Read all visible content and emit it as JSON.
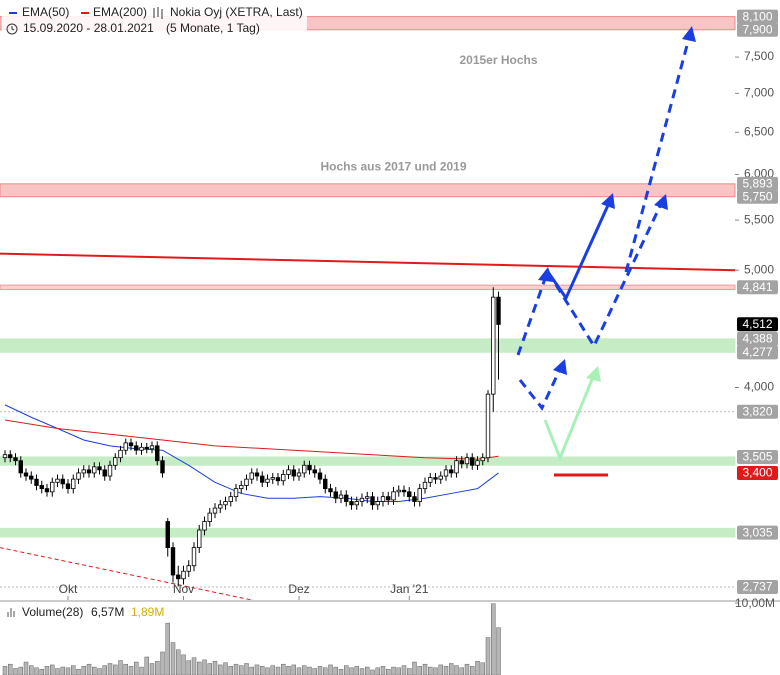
{
  "chart_data": {
    "type": "candlestick",
    "title": "Nokia Oyj (XETRA, Last)",
    "subtitle": "15.09.2020 - 28.01.2021",
    "period": "(5 Monate, 1 Tag)",
    "log_scale": true,
    "ylim": [
      2.67,
      8.36
    ],
    "yticks": [
      {
        "value": 4.0,
        "label": "4,000"
      },
      {
        "value": 5.0,
        "label": "5,000"
      },
      {
        "value": 5.5,
        "label": "5,500"
      },
      {
        "value": 6.0,
        "label": "6,000"
      },
      {
        "value": 6.5,
        "label": "6,500"
      },
      {
        "value": 7.0,
        "label": "7,000"
      },
      {
        "value": 7.5,
        "label": "7,500"
      }
    ],
    "categories": [
      null,
      null,
      null,
      null,
      null,
      null,
      null,
      null,
      null,
      null,
      null,
      null,
      "Okt",
      null,
      null,
      null,
      null,
      null,
      null,
      null,
      null,
      null,
      null,
      null,
      null,
      null,
      null,
      null,
      null,
      null,
      null,
      null,
      null,
      null,
      "Nov",
      null,
      null,
      null,
      null,
      null,
      null,
      null,
      null,
      null,
      null,
      null,
      null,
      null,
      null,
      null,
      null,
      null,
      null,
      null,
      null,
      null,
      "Dez",
      null,
      null,
      null,
      null,
      null,
      null,
      null,
      null,
      null,
      null,
      null,
      null,
      null,
      null,
      null,
      null,
      null,
      null,
      null,
      null,
      "Jan '21",
      null,
      null,
      null,
      null,
      null,
      null,
      null,
      null,
      null,
      null,
      null,
      null,
      null,
      null,
      null,
      null,
      null
    ],
    "candles": [
      [
        3.5,
        3.55,
        3.47,
        3.52
      ],
      [
        3.52,
        3.55,
        3.47,
        3.5
      ],
      [
        3.5,
        3.53,
        3.45,
        3.48
      ],
      [
        3.48,
        3.51,
        3.37,
        3.4
      ],
      [
        3.4,
        3.43,
        3.35,
        3.38
      ],
      [
        3.38,
        3.41,
        3.33,
        3.36
      ],
      [
        3.36,
        3.39,
        3.29,
        3.32
      ],
      [
        3.32,
        3.35,
        3.27,
        3.3
      ],
      [
        3.3,
        3.33,
        3.25,
        3.28
      ],
      [
        3.28,
        3.37,
        3.25,
        3.34
      ],
      [
        3.34,
        3.39,
        3.31,
        3.36
      ],
      [
        3.36,
        3.39,
        3.3,
        3.33
      ],
      [
        3.33,
        3.36,
        3.27,
        3.3
      ],
      [
        3.3,
        3.39,
        3.27,
        3.36
      ],
      [
        3.36,
        3.43,
        3.33,
        3.4
      ],
      [
        3.4,
        3.45,
        3.37,
        3.42
      ],
      [
        3.42,
        3.45,
        3.37,
        3.4
      ],
      [
        3.4,
        3.47,
        3.37,
        3.44
      ],
      [
        3.44,
        3.47,
        3.39,
        3.42
      ],
      [
        3.42,
        3.45,
        3.35,
        3.38
      ],
      [
        3.38,
        3.48,
        3.35,
        3.45
      ],
      [
        3.45,
        3.53,
        3.42,
        3.5
      ],
      [
        3.5,
        3.58,
        3.47,
        3.55
      ],
      [
        3.55,
        3.63,
        3.52,
        3.6
      ],
      [
        3.6,
        3.63,
        3.55,
        3.58
      ],
      [
        3.58,
        3.61,
        3.52,
        3.55
      ],
      [
        3.55,
        3.6,
        3.52,
        3.57
      ],
      [
        3.57,
        3.6,
        3.53,
        3.56
      ],
      [
        3.56,
        3.61,
        3.53,
        3.58
      ],
      [
        3.58,
        3.61,
        3.45,
        3.48
      ],
      [
        3.48,
        3.51,
        3.37,
        3.4
      ],
      [
        3.1,
        3.12,
        2.9,
        2.95
      ],
      [
        2.95,
        2.98,
        2.76,
        2.8
      ],
      [
        2.8,
        2.85,
        2.74,
        2.78
      ],
      [
        2.78,
        2.85,
        2.75,
        2.82
      ],
      [
        2.82,
        2.88,
        2.79,
        2.85
      ],
      [
        2.85,
        2.98,
        2.82,
        2.95
      ],
      [
        2.95,
        3.08,
        2.92,
        3.05
      ],
      [
        3.05,
        3.13,
        3.02,
        3.1
      ],
      [
        3.1,
        3.18,
        3.07,
        3.15
      ],
      [
        3.15,
        3.21,
        3.12,
        3.18
      ],
      [
        3.18,
        3.23,
        3.15,
        3.2
      ],
      [
        3.2,
        3.25,
        3.17,
        3.22
      ],
      [
        3.22,
        3.28,
        3.19,
        3.25
      ],
      [
        3.25,
        3.33,
        3.22,
        3.3
      ],
      [
        3.3,
        3.35,
        3.27,
        3.32
      ],
      [
        3.32,
        3.39,
        3.29,
        3.36
      ],
      [
        3.36,
        3.43,
        3.33,
        3.4
      ],
      [
        3.4,
        3.43,
        3.35,
        3.38
      ],
      [
        3.38,
        3.41,
        3.31,
        3.34
      ],
      [
        3.34,
        3.39,
        3.31,
        3.36
      ],
      [
        3.36,
        3.4,
        3.33,
        3.37
      ],
      [
        3.37,
        3.4,
        3.32,
        3.35
      ],
      [
        3.35,
        3.42,
        3.32,
        3.39
      ],
      [
        3.39,
        3.45,
        3.36,
        3.42
      ],
      [
        3.42,
        3.45,
        3.35,
        3.38
      ],
      [
        3.38,
        3.43,
        3.35,
        3.4
      ],
      [
        3.4,
        3.48,
        3.37,
        3.45
      ],
      [
        3.45,
        3.48,
        3.39,
        3.42
      ],
      [
        3.42,
        3.45,
        3.37,
        3.4
      ],
      [
        3.4,
        3.43,
        3.33,
        3.36
      ],
      [
        3.36,
        3.39,
        3.27,
        3.3
      ],
      [
        3.3,
        3.33,
        3.25,
        3.28
      ],
      [
        3.28,
        3.31,
        3.21,
        3.24
      ],
      [
        3.24,
        3.29,
        3.21,
        3.26
      ],
      [
        3.26,
        3.29,
        3.19,
        3.22
      ],
      [
        3.22,
        3.25,
        3.17,
        3.2
      ],
      [
        3.2,
        3.25,
        3.17,
        3.22
      ],
      [
        3.22,
        3.27,
        3.19,
        3.24
      ],
      [
        3.24,
        3.28,
        3.21,
        3.25
      ],
      [
        3.25,
        3.28,
        3.17,
        3.2
      ],
      [
        3.2,
        3.25,
        3.17,
        3.22
      ],
      [
        3.22,
        3.28,
        3.19,
        3.25
      ],
      [
        3.25,
        3.28,
        3.2,
        3.23
      ],
      [
        3.23,
        3.31,
        3.2,
        3.28
      ],
      [
        3.28,
        3.32,
        3.25,
        3.29
      ],
      [
        3.29,
        3.32,
        3.25,
        3.28
      ],
      [
        3.28,
        3.31,
        3.22,
        3.25
      ],
      [
        3.25,
        3.28,
        3.19,
        3.22
      ],
      [
        3.22,
        3.33,
        3.19,
        3.3
      ],
      [
        3.3,
        3.37,
        3.27,
        3.34
      ],
      [
        3.34,
        3.4,
        3.31,
        3.37
      ],
      [
        3.37,
        3.4,
        3.33,
        3.36
      ],
      [
        3.36,
        3.41,
        3.33,
        3.38
      ],
      [
        3.38,
        3.45,
        3.35,
        3.42
      ],
      [
        3.42,
        3.45,
        3.37,
        3.4
      ],
      [
        3.4,
        3.51,
        3.37,
        3.48
      ],
      [
        3.48,
        3.51,
        3.43,
        3.46
      ],
      [
        3.46,
        3.53,
        3.43,
        3.5
      ],
      [
        3.5,
        3.53,
        3.42,
        3.45
      ],
      [
        3.45,
        3.51,
        3.42,
        3.48
      ],
      [
        3.48,
        3.53,
        3.45,
        3.5
      ],
      [
        3.5,
        3.98,
        3.47,
        3.95
      ],
      [
        3.95,
        4.84,
        3.82,
        4.75
      ],
      [
        4.75,
        4.8,
        4.06,
        4.51
      ]
    ],
    "up_color": "#ffffff",
    "down_color": "#000000",
    "series": [
      {
        "name": "EMA(50)",
        "color": "#1a3fe0",
        "x": [
          0,
          5,
          10,
          15,
          20,
          25,
          30,
          35,
          40,
          45,
          50,
          55,
          60,
          65,
          70,
          75,
          80,
          85,
          90,
          94
        ],
        "values": [
          3.87,
          3.78,
          3.7,
          3.62,
          3.58,
          3.56,
          3.55,
          3.45,
          3.34,
          3.27,
          3.24,
          3.24,
          3.25,
          3.24,
          3.22,
          3.22,
          3.24,
          3.27,
          3.3,
          3.4
        ]
      },
      {
        "name": "EMA(200)",
        "color": "#e01a1a",
        "x": [
          0,
          10,
          20,
          30,
          40,
          50,
          60,
          70,
          80,
          90,
          94
        ],
        "values": [
          3.76,
          3.7,
          3.66,
          3.62,
          3.58,
          3.56,
          3.54,
          3.52,
          3.5,
          3.49,
          3.51
        ]
      }
    ],
    "zones": [
      {
        "low": 7.9,
        "high": 8.1,
        "color": "#f8c4c4",
        "edge": "#e88"
      },
      {
        "low": 5.75,
        "high": 5.893,
        "color": "#f8c4c4",
        "edge": "#e88"
      },
      {
        "low": 4.82,
        "high": 4.86,
        "color": "#f8d0d0",
        "edge": "#e99"
      },
      {
        "low": 4.277,
        "high": 4.388,
        "color": "#c6ecc6",
        "edge": "#c6ecc6"
      },
      {
        "low": 3.45,
        "high": 3.505,
        "color": "#c6ecc6",
        "edge": "#c6ecc6"
      },
      {
        "low": 3.01,
        "high": 3.06,
        "color": "#c6ecc6",
        "edge": "#c6ecc6"
      }
    ],
    "levels": [
      {
        "value": 8.1,
        "label": "8,100",
        "tag": "#a3a3a3"
      },
      {
        "value": 7.9,
        "label": "7,900",
        "tag": "#a3a3a3"
      },
      {
        "value": 5.893,
        "label": "5,893",
        "tag": "#a3a3a3"
      },
      {
        "value": 5.75,
        "label": "5,750",
        "tag": "#a3a3a3"
      },
      {
        "value": 4.841,
        "label": "4,841",
        "tag": "#a3a3a3"
      },
      {
        "value": 4.512,
        "label": "4,512",
        "tag": "#000000"
      },
      {
        "value": 4.388,
        "label": "4,388",
        "tag": "#a3a3a3"
      },
      {
        "value": 4.277,
        "label": "4,277",
        "tag": "#a3a3a3"
      },
      {
        "value": 3.82,
        "label": "3,820",
        "tag": "#a3a3a3",
        "line": "#bbbbbb"
      },
      {
        "value": 3.505,
        "label": "3,505",
        "tag": "#a3a3a3"
      },
      {
        "value": 3.4,
        "label": "3,400",
        "tag": "#e01a1a"
      },
      {
        "value": 3.035,
        "label": "3,035",
        "tag": "#a3a3a3"
      },
      {
        "value": 2.737,
        "label": "2,737",
        "tag": "#a3a3a3",
        "line": "#bbbbbb"
      }
    ],
    "trendlines": [
      {
        "x": [
          -1,
          148
        ],
        "values": [
          5.16,
          4.99
        ],
        "color": "#e01a1a",
        "dashed": false
      },
      {
        "x": [
          -1,
          47
        ],
        "values": [
          2.95,
          2.67
        ],
        "color": "#e01a1a",
        "dashed": true
      }
    ],
    "annotations": [
      {
        "text": "2015er Hochs",
        "x": 94,
        "value": 7.45
      },
      {
        "text": "Hochs aus 2017 und 2019",
        "x": 74,
        "value": 6.08
      }
    ],
    "volume": {
      "name": "Volume(28)",
      "last_label": "6,57M",
      "avg_label": "1,89M",
      "color": "#b5b5b5",
      "ylim": [
        0,
        10
      ],
      "yticks": [
        {
          "value": 10,
          "label": "10,00M"
        }
      ],
      "values": [
        1.2,
        1.5,
        0.9,
        1.1,
        1.8,
        1.3,
        1.0,
        0.8,
        1.2,
        1.4,
        0.9,
        1.1,
        1.0,
        1.3,
        0.8,
        1.2,
        1.5,
        1.1,
        0.9,
        1.3,
        1.6,
        1.4,
        2.0,
        1.5,
        1.2,
        1.8,
        1.1,
        2.5,
        1.6,
        1.9,
        3.2,
        7.2,
        4.5,
        3.5,
        2.8,
        2.0,
        2.4,
        1.8,
        2.1,
        1.6,
        1.9,
        1.4,
        1.7,
        1.2,
        1.5,
        1.3,
        1.6,
        1.1,
        1.4,
        1.2,
        1.0,
        1.3,
        1.1,
        1.5,
        1.2,
        1.4,
        1.0,
        1.3,
        1.1,
        0.9,
        1.2,
        1.0,
        1.4,
        1.1,
        0.8,
        1.3,
        1.0,
        1.2,
        0.9,
        1.1,
        0.7,
        1.0,
        1.2,
        0.8,
        1.1,
        1.0,
        1.3,
        0.9,
        1.8,
        1.2,
        1.5,
        1.1,
        1.0,
        1.4,
        1.2,
        1.6,
        1.3,
        1.0,
        1.5,
        1.2,
        1.9,
        1.7,
        5.2,
        9.9,
        6.57
      ]
    }
  }
}
